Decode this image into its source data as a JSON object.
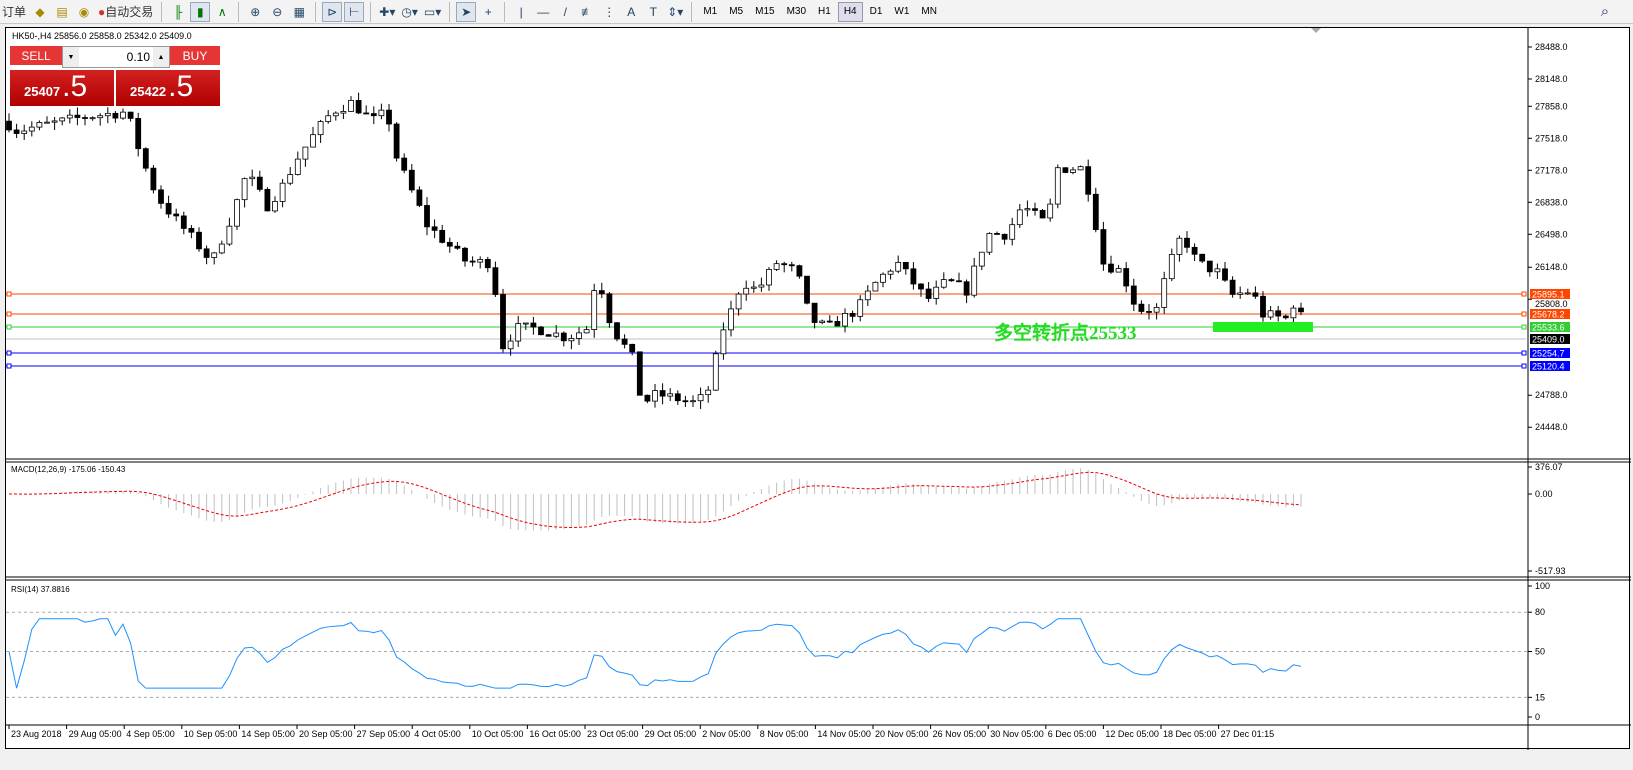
{
  "toolbar": {
    "items": [
      {
        "label": "订单",
        "icon": "new-order-icon"
      },
      {
        "icon": "history-icon"
      },
      {
        "icon": "signal-icon"
      },
      {
        "icon": "expert-icon"
      },
      {
        "label": "自动交易",
        "icon": "autotrading-icon"
      }
    ],
    "chart_tools": [
      "bar-chart-icon",
      "candlestick-icon",
      "line-chart-icon",
      "zoom-in-icon",
      "zoom-out-icon",
      "tile-windows-icon",
      "auto-scroll-icon",
      "chart-shift-icon",
      "indicators-icon",
      "periods-icon",
      "templates-icon",
      "cursor-icon",
      "crosshair-icon",
      "vertical-line-icon",
      "horizontal-line-icon",
      "trendline-icon",
      "fibonacci-icon",
      "channels-icon",
      "text-icon",
      "text-label-icon",
      "arrows-icon"
    ],
    "timeframes": [
      "M1",
      "M5",
      "M15",
      "M30",
      "H1",
      "H4",
      "D1",
      "W1",
      "MN"
    ],
    "active_timeframe": "H4"
  },
  "chart": {
    "title": "HK50-,H4  25856.0 25858.0 25342.0 25409.0",
    "trade": {
      "sell_label": "SELL",
      "buy_label": "BUY",
      "lot": "0.10",
      "sell_main": "25407",
      "sell_frac": ".5",
      "buy_main": "25422",
      "buy_frac": ".5"
    },
    "annotation": "多空转折点25533",
    "price_ticks": [
      "28488.0",
      "28148.0",
      "27858.0",
      "27518.0",
      "27178.0",
      "26838.0",
      "26498.0",
      "26148.0",
      "25808.0",
      "24788.0",
      "24448.0"
    ],
    "levels": [
      {
        "value": "25895.1",
        "color": "#ff4500"
      },
      {
        "value": "25678.2",
        "color": "#ff4500"
      },
      {
        "value": "25533.6",
        "color": "#32cd32"
      },
      {
        "value": "25409.0",
        "color": "#000000",
        "line": "#c0c0c0"
      },
      {
        "value": "25254.7",
        "color": "#0000ff"
      },
      {
        "value": "25120.4",
        "color": "#0000ff"
      }
    ],
    "macd": {
      "label": "MACD(12,26,9) -175.06 -150.43",
      "ticks": [
        "376.07",
        "0.00",
        "-517.93"
      ]
    },
    "rsi": {
      "label": "RSI(14) 37.8816",
      "ticks": [
        "100",
        "80",
        "50",
        "15",
        "0"
      ]
    },
    "dates": [
      "23 Aug 2018",
      "29 Aug 05:00",
      "4 Sep 05:00",
      "10 Sep 05:00",
      "14 Sep 05:00",
      "20 Sep 05:00",
      "27 Sep 05:00",
      "4 Oct 05:00",
      "10 Oct 05:00",
      "16 Oct 05:00",
      "23 Oct 05:00",
      "29 Oct 05:00",
      "2 Nov 05:00",
      "8 Nov 05:00",
      "14 Nov 05:00",
      "20 Nov 05:00",
      "26 Nov 05:00",
      "30 Nov 05:00",
      "6 Dec 05:00",
      "12 Dec 05:00",
      "18 Dec 05:00",
      "27 Dec 01:15"
    ]
  }
}
